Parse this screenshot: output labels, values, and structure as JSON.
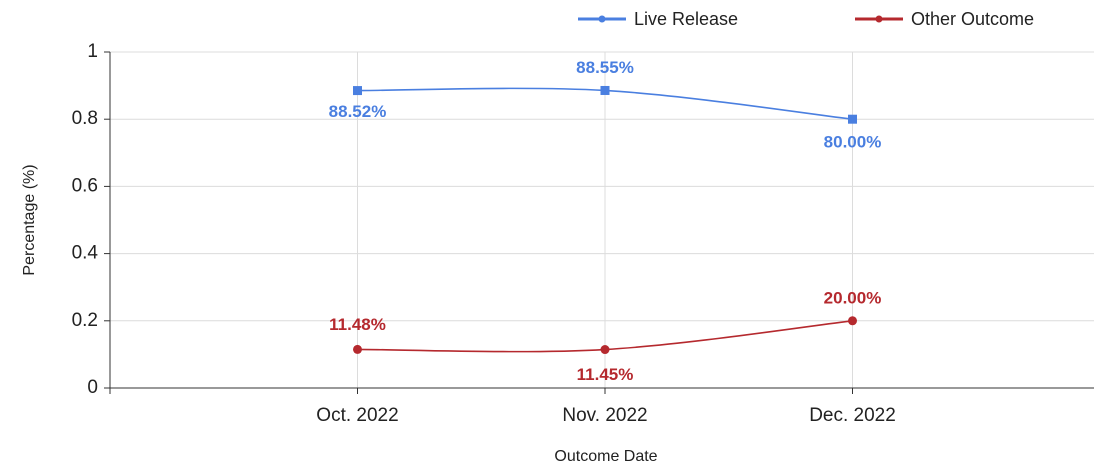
{
  "chart_data": {
    "type": "line",
    "x_label": "Outcome Date",
    "y_label": "Percentage (%)",
    "categories": [
      "Oct. 2022",
      "Nov. 2022",
      "Dec. 2022"
    ],
    "series": [
      {
        "name": "Live Release",
        "color": "#4a7fe0",
        "values": [
          0.8852,
          0.8855,
          0.8
        ],
        "value_labels": [
          "88.52%",
          "88.55%",
          "80.00%"
        ]
      },
      {
        "name": "Other Outcome",
        "color": "#b5292e",
        "values": [
          0.1148,
          0.1145,
          0.2
        ],
        "value_labels": [
          "11.48%",
          "11.45%",
          "20.00%"
        ]
      }
    ],
    "ylim": [
      0,
      1
    ],
    "yticks": [
      0,
      0.2,
      0.4,
      0.6,
      0.8,
      1
    ],
    "grid": true,
    "legend": "top-right"
  }
}
